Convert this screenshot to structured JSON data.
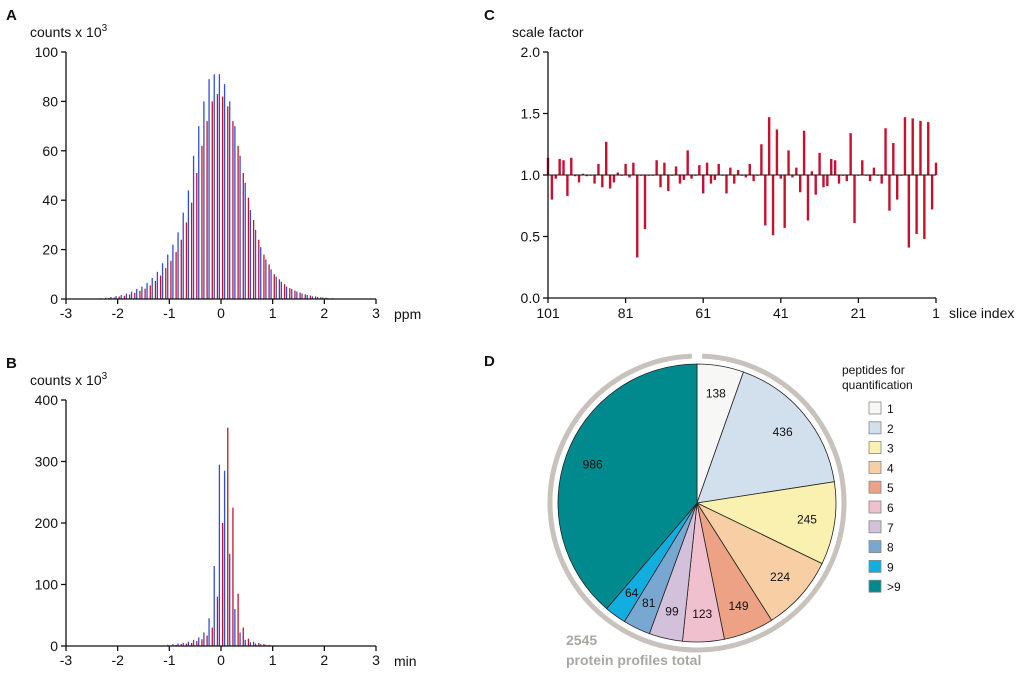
{
  "panels": {
    "A": {
      "label": "A"
    },
    "B": {
      "label": "B"
    },
    "C": {
      "label": "C"
    },
    "D": {
      "label": "D"
    }
  },
  "chart_data": [
    {
      "id": "A",
      "type": "bar",
      "title": "counts x 10",
      "title_sup": "3",
      "xlabel": "ppm",
      "ylabel": "counts x 10^3",
      "xlim": [
        -3,
        3
      ],
      "ylim": [
        0,
        100
      ],
      "xticks": [
        "-3",
        "-2",
        "-1",
        "0",
        "1",
        "2",
        "3"
      ],
      "yticks": [
        "0",
        "20",
        "40",
        "60",
        "80",
        "100"
      ],
      "series_colors": {
        "blue": "#2f4fd6",
        "red": "#c8102e"
      },
      "x": [
        -2.3,
        -2.2,
        -2.1,
        -2.0,
        -1.9,
        -1.8,
        -1.7,
        -1.6,
        -1.5,
        -1.4,
        -1.3,
        -1.2,
        -1.1,
        -1.0,
        -0.9,
        -0.8,
        -0.7,
        -0.6,
        -0.5,
        -0.4,
        -0.3,
        -0.2,
        -0.1,
        0.0,
        0.1,
        0.2,
        0.3,
        0.4,
        0.5,
        0.6,
        0.7,
        0.8,
        0.9,
        1.0,
        1.1,
        1.2,
        1.3,
        1.4,
        1.5,
        1.6,
        1.7,
        1.8,
        1.9,
        2.0,
        2.1,
        2.2,
        2.3,
        2.4
      ],
      "series": [
        {
          "name": "blue",
          "values": [
            0.3,
            0.5,
            0.8,
            1.2,
            1.6,
            2.2,
            3,
            4,
            5,
            6.5,
            8.5,
            11,
            14.5,
            18,
            22,
            27,
            35,
            44,
            58,
            70,
            80,
            89,
            91,
            91,
            87,
            80,
            70,
            58,
            47,
            36,
            28,
            21,
            16,
            12,
            9,
            7,
            5,
            4,
            3,
            2.2,
            1.6,
            1.1,
            0.8,
            0.6,
            0.4,
            0.3,
            0.2,
            0.1
          ]
        },
        {
          "name": "red",
          "values": [
            0.2,
            0.4,
            0.6,
            1,
            1.3,
            1.8,
            2.5,
            3.3,
            4.2,
            5.5,
            7.3,
            9.5,
            12.5,
            15.5,
            19,
            24,
            31,
            39,
            51,
            62,
            72,
            80,
            83,
            82,
            78,
            72,
            62,
            51,
            41,
            32,
            24,
            18,
            14,
            10,
            8,
            6,
            4.4,
            3.4,
            2.6,
            1.9,
            1.4,
            1,
            0.7,
            0.5,
            0.3,
            0.2,
            0.15,
            0.1
          ]
        }
      ]
    },
    {
      "id": "B",
      "type": "bar",
      "title": "counts x 10",
      "title_sup": "3",
      "xlabel": "min",
      "ylabel": "counts x 10^3",
      "xlim": [
        -3,
        3
      ],
      "ylim": [
        0,
        400
      ],
      "xticks": [
        "-3",
        "-2",
        "-1",
        "0",
        "1",
        "2",
        "3"
      ],
      "yticks": [
        "0",
        "100",
        "200",
        "300",
        "400"
      ],
      "x": [
        -1.0,
        -0.9,
        -0.8,
        -0.7,
        -0.6,
        -0.5,
        -0.4,
        -0.3,
        -0.2,
        -0.1,
        0.0,
        0.1,
        0.2,
        0.3,
        0.4,
        0.5,
        0.6,
        0.7,
        0.8,
        0.9,
        1.0
      ],
      "series": [
        {
          "name": "blue",
          "values": [
            2,
            3,
            4,
            5,
            7,
            10,
            14,
            22,
            45,
            130,
            295,
            285,
            150,
            60,
            22,
            10,
            6,
            4,
            3,
            2,
            1
          ]
        },
        {
          "name": "red",
          "values": [
            1,
            2,
            3,
            4,
            5,
            8,
            11,
            17,
            30,
            80,
            200,
            355,
            225,
            85,
            30,
            12,
            7,
            5,
            3,
            2,
            1
          ]
        }
      ]
    },
    {
      "id": "C",
      "type": "bar",
      "title": "scale factor",
      "xlabel": "slice index",
      "ylabel": "scale factor",
      "xlim": [
        101,
        1
      ],
      "ylim": [
        0,
        2
      ],
      "baseline": 1.0,
      "xticks": [
        "101",
        "81",
        "61",
        "41",
        "21",
        "1"
      ],
      "yticks": [
        "0.0",
        "0.5",
        "1.0",
        "1.5",
        "2.0"
      ],
      "bar_color": "#c8102e",
      "values": [
        1.14,
        0.8,
        0.97,
        1.13,
        1.12,
        0.83,
        1.14,
        0.99,
        0.94,
        1.01,
        0.99,
        1.0,
        0.93,
        1.09,
        0.9,
        1.27,
        0.89,
        0.94,
        1.02,
        1.0,
        1.09,
        0.98,
        1.1,
        0.33,
        1.0,
        0.56,
        1.0,
        1.0,
        1.12,
        0.9,
        1.1,
        0.87,
        1.0,
        1.07,
        0.93,
        0.96,
        1.2,
        0.97,
        1.0,
        1.08,
        0.85,
        1.1,
        0.93,
        0.96,
        1.09,
        1.0,
        0.85,
        1.06,
        0.93,
        1.04,
        1.0,
        0.98,
        1.09,
        0.95,
        1.0,
        1.25,
        0.59,
        1.47,
        0.51,
        1.37,
        0.97,
        0.57,
        1.2,
        0.98,
        1.06,
        0.86,
        1.36,
        0.63,
        1.03,
        0.84,
        1.18,
        0.9,
        0.91,
        1.13,
        1.12,
        0.93,
        1.0,
        0.95,
        1.34,
        0.61,
        1.0,
        1.12,
        1.0,
        0.95,
        1.06,
        1.0,
        0.93,
        1.38,
        0.71,
        1.26,
        0.8,
        1.0,
        1.47,
        0.41,
        1.46,
        0.52,
        1.44,
        0.48,
        1.43,
        0.72,
        1.1
      ]
    },
    {
      "id": "D",
      "type": "pie",
      "title": "peptides for quantification",
      "title_lines": [
        "peptides for",
        "quantification"
      ],
      "categories": [
        "1",
        "2",
        "3",
        "4",
        "5",
        "6",
        "7",
        "8",
        "9",
        ">9"
      ],
      "values": [
        138,
        436,
        245,
        224,
        149,
        123,
        99,
        81,
        64,
        986
      ],
      "colors": [
        "#f7f7f5",
        "#d2dfec",
        "#faf1b0",
        "#f8cfa4",
        "#eda185",
        "#f1c0ce",
        "#d3c0db",
        "#78a7d2",
        "#13aee0",
        "#008a8e"
      ],
      "ring_color": "#c7c2bb",
      "total_value": "2545",
      "total_label": "protein profiles total"
    }
  ]
}
